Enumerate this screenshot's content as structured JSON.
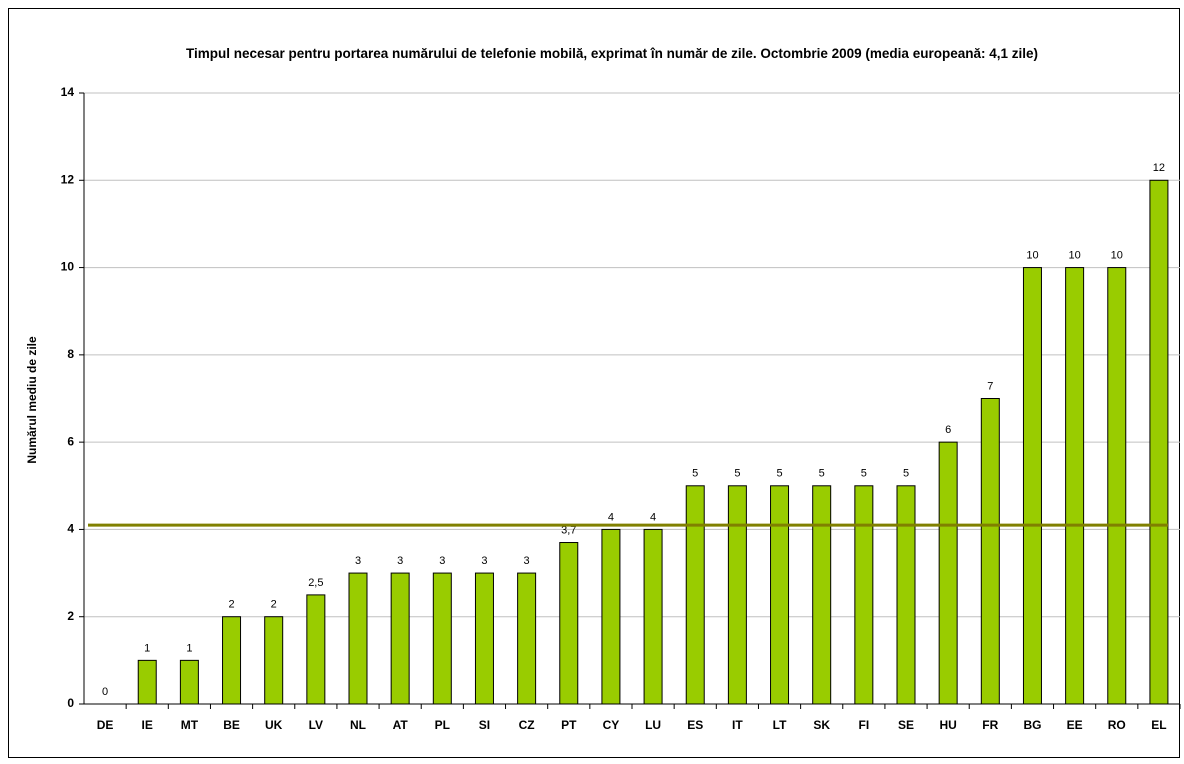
{
  "chart_data": {
    "type": "bar",
    "title": "Timpul necesar pentru portarea numărului de telefonie mobilă, exprimat în număr de zile. Octombrie 2009 (media europeană: 4,1 zile)",
    "y_label": "Numărul mediu de zile",
    "categories": [
      "DE",
      "IE",
      "MT",
      "BE",
      "UK",
      "LV",
      "NL",
      "AT",
      "PL",
      "SI",
      "CZ",
      "PT",
      "CY",
      "LU",
      "ES",
      "IT",
      "LT",
      "SK",
      "FI",
      "SE",
      "HU",
      "FR",
      "BG",
      "EE",
      "RO",
      "EL"
    ],
    "values": [
      0,
      1,
      1,
      2,
      2,
      2.5,
      3,
      3,
      3,
      3,
      3,
      3.7,
      4,
      4,
      5,
      5,
      5,
      5,
      5,
      5,
      6,
      7,
      10,
      10,
      10,
      12
    ],
    "value_labels": [
      "0",
      "1",
      "1",
      "2",
      "2",
      "2,5",
      "3",
      "3",
      "3",
      "3",
      "3",
      "3,7",
      "4",
      "4",
      "5",
      "5",
      "5",
      "5",
      "5",
      "5",
      "6",
      "7",
      "10",
      "10",
      "10",
      "12"
    ],
    "color": "#99cc00",
    "reference_line": {
      "value": 4.1,
      "color": "#808000"
    },
    "ylim": [
      0,
      14
    ],
    "yticks": [
      0,
      2,
      4,
      6,
      8,
      10,
      12,
      14
    ],
    "grid": true
  }
}
